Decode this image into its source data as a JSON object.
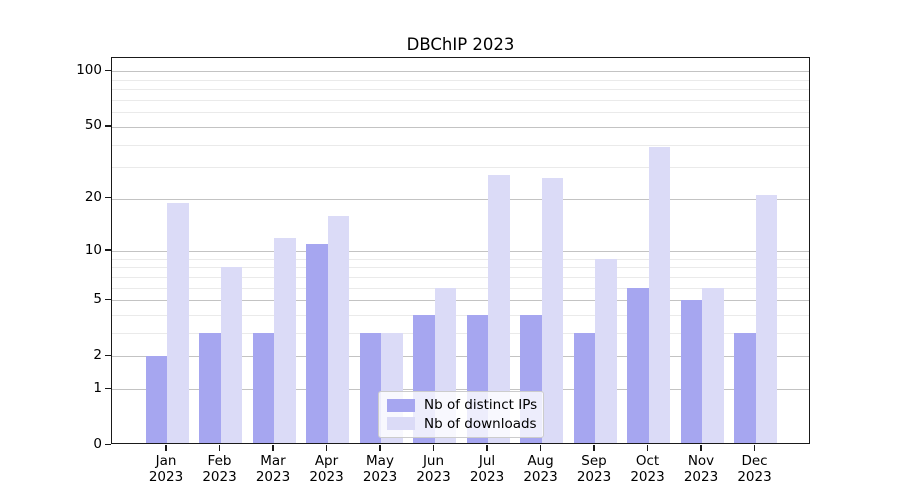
{
  "chart_data": {
    "type": "bar",
    "title": "DBChIP 2023",
    "categories": [
      "Jan",
      "Feb",
      "Mar",
      "Apr",
      "May",
      "Jun",
      "Jul",
      "Aug",
      "Sep",
      "Oct",
      "Nov",
      "Dec"
    ],
    "year_label": "2023",
    "series": [
      {
        "key": "ips",
        "name": "Nb of distinct IPs",
        "color": "#a6a6f0",
        "values": [
          2,
          3,
          3,
          11,
          3,
          4,
          4,
          4,
          3,
          6,
          5,
          3
        ]
      },
      {
        "key": "downloads",
        "name": "Nb of downloads",
        "color": "#dbdbf7",
        "values": [
          19,
          8,
          12,
          16,
          3,
          6,
          27,
          26,
          9,
          39,
          6,
          21
        ]
      }
    ],
    "yticks": [
      0,
      1,
      2,
      5,
      10,
      20,
      50,
      100
    ],
    "minor_yticks": [
      3,
      4,
      6,
      7,
      8,
      9,
      30,
      40,
      60,
      70,
      80,
      90
    ],
    "yscale": "log1p",
    "ylim": [
      0,
      120
    ],
    "xlabel": "",
    "ylabel": "",
    "grid": true,
    "legend_position": "lower center"
  }
}
